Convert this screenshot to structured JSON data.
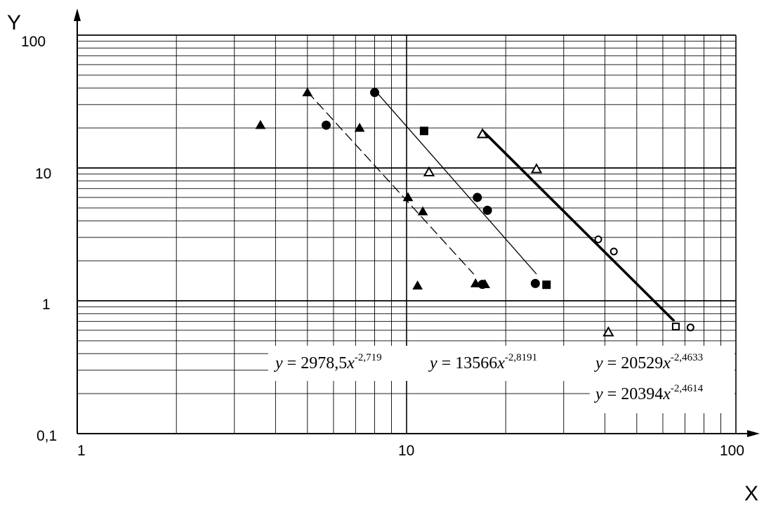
{
  "chart_data": {
    "type": "scatter",
    "title": "",
    "xlabel": "X",
    "ylabel": "Y",
    "xscale": "log",
    "yscale": "log",
    "xlim": [
      1,
      100
    ],
    "ylim": [
      0.1,
      100
    ],
    "x_ticks": [
      "1",
      "10",
      "100"
    ],
    "y_ticks": [
      "0,1",
      "1",
      "10",
      "100"
    ],
    "grid": true,
    "series": [
      {
        "marker": "filled-triangle",
        "points": [
          [
            3.6,
            21
          ],
          [
            5,
            37
          ],
          [
            7.2,
            20
          ],
          [
            10.1,
            6
          ],
          [
            11.2,
            4.7
          ],
          [
            10.8,
            1.3
          ],
          [
            16.2,
            1.35
          ],
          [
            17.3,
            1.33
          ]
        ]
      },
      {
        "marker": "filled-circle",
        "points": [
          [
            5.7,
            21
          ],
          [
            8,
            37
          ],
          [
            16.4,
            6
          ],
          [
            17.6,
            4.8
          ],
          [
            17,
            1.33
          ],
          [
            24.6,
            1.35
          ]
        ]
      },
      {
        "marker": "filled-square",
        "points": [
          [
            11.3,
            19
          ],
          [
            26.6,
            1.32
          ]
        ]
      },
      {
        "marker": "open-triangle",
        "points": [
          [
            11.7,
            9.3
          ],
          [
            17,
            18
          ],
          [
            24.8,
            9.8
          ],
          [
            41,
            0.58
          ]
        ]
      },
      {
        "marker": "open-circle",
        "points": [
          [
            38.2,
            2.9
          ],
          [
            42.6,
            2.35
          ],
          [
            72.8,
            0.63
          ]
        ]
      },
      {
        "marker": "open-square",
        "points": [
          [
            65.7,
            0.64
          ]
        ]
      }
    ],
    "fits": [
      {
        "style": "dashed-thin",
        "a": 2978.5,
        "b": -2.719,
        "x_range": [
          5,
          16
        ]
      },
      {
        "style": "solid-thin",
        "a": 13566,
        "b": -2.8191,
        "x_range": [
          8,
          24.8
        ]
      },
      {
        "style": "solid-thick",
        "a": 20529,
        "b": -2.4633,
        "x_range": [
          17,
          65
        ]
      }
    ],
    "equations": [
      {
        "lhs": "y",
        "eq": " = 2978,5",
        "var": "x",
        "exp": "-2,719"
      },
      {
        "lhs": "y",
        "eq": " = 13566",
        "var": "x",
        "exp": "-2,8191"
      },
      {
        "lhs": "y",
        "eq": " = 20529",
        "var": "x",
        "exp": "-2,4633"
      },
      {
        "lhs": "y",
        "eq": " = 20394",
        "var": "x",
        "exp": "-2,4614"
      }
    ]
  }
}
